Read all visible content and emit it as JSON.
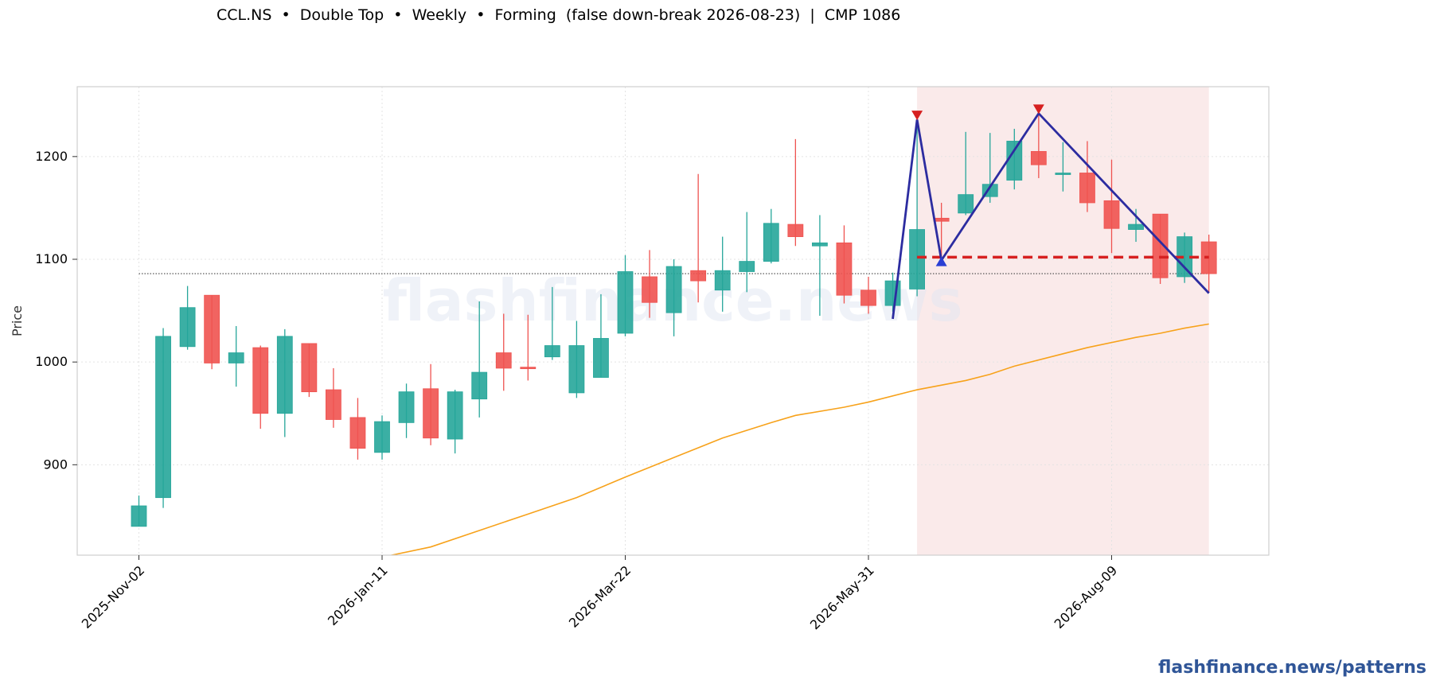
{
  "page": {
    "title": "CCL.NS  •  Double Top  •  Weekly  •  Forming  (false down-break 2026-08-23)  |  CMP 1086",
    "footer_link": "flashfinance.news/patterns",
    "watermark": "flashfinance.news"
  },
  "chart_data": {
    "type": "candlestick",
    "ticker": "CCL.NS",
    "pattern": "Double Top",
    "timeframe": "Weekly",
    "status": "Forming",
    "cmp": 1086,
    "ylabel": "Price",
    "ylim": [
      812,
      1268
    ],
    "yticks": [
      900,
      1000,
      1100,
      1200
    ],
    "xtick_labels": [
      "2025-Nov-02",
      "2026-Jan-11",
      "2026-Mar-22",
      "2026-May-31",
      "2026-Aug-09"
    ],
    "xtick_index": [
      0,
      10,
      20,
      30,
      40
    ],
    "grid": true,
    "colors": {
      "up": "#26a69a",
      "down": "#ef5350",
      "ma": "#f7a21b",
      "pattern": "#2c2ca0",
      "neckline": "#d62020",
      "shade": "#f9e5e5"
    },
    "candles": [
      {
        "date": "2025-Nov-02",
        "o": 840,
        "h": 870,
        "l": 840,
        "c": 860
      },
      {
        "date": "2025-Nov-09",
        "o": 868,
        "h": 1033,
        "l": 858,
        "c": 1025
      },
      {
        "date": "2025-Nov-16",
        "o": 1015,
        "h": 1074,
        "l": 1012,
        "c": 1053
      },
      {
        "date": "2025-Nov-23",
        "o": 1065,
        "h": 1065,
        "l": 993,
        "c": 999
      },
      {
        "date": "2025-Nov-30",
        "o": 999,
        "h": 1035,
        "l": 976,
        "c": 1009
      },
      {
        "date": "2025-Dec-07",
        "o": 1014,
        "h": 1016,
        "l": 935,
        "c": 950
      },
      {
        "date": "2025-Dec-14",
        "o": 950,
        "h": 1032,
        "l": 927,
        "c": 1025
      },
      {
        "date": "2025-Dec-21",
        "o": 1018,
        "h": 1018,
        "l": 966,
        "c": 971
      },
      {
        "date": "2025-Dec-28",
        "o": 973,
        "h": 994,
        "l": 936,
        "c": 944
      },
      {
        "date": "2026-Jan-04",
        "o": 946,
        "h": 965,
        "l": 905,
        "c": 916
      },
      {
        "date": "2026-Jan-11",
        "o": 912,
        "h": 948,
        "l": 905,
        "c": 942
      },
      {
        "date": "2026-Jan-18",
        "o": 941,
        "h": 979,
        "l": 926,
        "c": 971
      },
      {
        "date": "2026-Jan-25",
        "o": 974,
        "h": 998,
        "l": 919,
        "c": 926
      },
      {
        "date": "2026-Feb-01",
        "o": 925,
        "h": 973,
        "l": 911,
        "c": 971
      },
      {
        "date": "2026-Feb-08",
        "o": 964,
        "h": 1059,
        "l": 946,
        "c": 990
      },
      {
        "date": "2026-Feb-15",
        "o": 1009,
        "h": 1047,
        "l": 972,
        "c": 994
      },
      {
        "date": "2026-Feb-22",
        "o": 995,
        "h": 1046,
        "l": 982,
        "c": 994
      },
      {
        "date": "2026-Mar-01",
        "o": 1005,
        "h": 1073,
        "l": 1002,
        "c": 1016
      },
      {
        "date": "2026-Mar-08",
        "o": 970,
        "h": 1040,
        "l": 965,
        "c": 1016
      },
      {
        "date": "2026-Mar-15",
        "o": 985,
        "h": 1066,
        "l": 985,
        "c": 1023
      },
      {
        "date": "2026-Mar-22",
        "o": 1028,
        "h": 1104,
        "l": 1025,
        "c": 1088
      },
      {
        "date": "2026-Mar-29",
        "o": 1083,
        "h": 1109,
        "l": 1043,
        "c": 1058
      },
      {
        "date": "2026-Apr-05",
        "o": 1048,
        "h": 1100,
        "l": 1025,
        "c": 1093
      },
      {
        "date": "2026-Apr-12",
        "o": 1089,
        "h": 1183,
        "l": 1058,
        "c": 1079
      },
      {
        "date": "2026-Apr-19",
        "o": 1070,
        "h": 1122,
        "l": 1049,
        "c": 1089
      },
      {
        "date": "2026-Apr-26",
        "o": 1088,
        "h": 1146,
        "l": 1068,
        "c": 1098
      },
      {
        "date": "2026-May-03",
        "o": 1098,
        "h": 1149,
        "l": 1096,
        "c": 1135
      },
      {
        "date": "2026-May-10",
        "o": 1134,
        "h": 1217,
        "l": 1113,
        "c": 1122
      },
      {
        "date": "2026-May-17",
        "o": 1113,
        "h": 1143,
        "l": 1045,
        "c": 1116
      },
      {
        "date": "2026-May-24",
        "o": 1116,
        "h": 1133,
        "l": 1057,
        "c": 1065
      },
      {
        "date": "2026-May-31",
        "o": 1070,
        "h": 1083,
        "l": 1047,
        "c": 1055
      },
      {
        "date": "2026-Jun-07",
        "o": 1055,
        "h": 1087,
        "l": 1049,
        "c": 1079
      },
      {
        "date": "2026-Jun-14",
        "o": 1071,
        "h": 1236,
        "l": 1064,
        "c": 1129
      },
      {
        "date": "2026-Jun-21",
        "o": 1140,
        "h": 1155,
        "l": 1099,
        "c": 1137
      },
      {
        "date": "2026-Jun-28",
        "o": 1145,
        "h": 1224,
        "l": 1143,
        "c": 1163
      },
      {
        "date": "2026-Jul-05",
        "o": 1161,
        "h": 1223,
        "l": 1155,
        "c": 1173
      },
      {
        "date": "2026-Jul-12",
        "o": 1177,
        "h": 1227,
        "l": 1168,
        "c": 1215
      },
      {
        "date": "2026-Jul-19",
        "o": 1205,
        "h": 1240,
        "l": 1179,
        "c": 1192
      },
      {
        "date": "2026-Jul-26",
        "o": 1184,
        "h": 1214,
        "l": 1166,
        "c": 1184
      },
      {
        "date": "2026-Aug-02",
        "o": 1184,
        "h": 1215,
        "l": 1146,
        "c": 1155
      },
      {
        "date": "2026-Aug-09",
        "o": 1157,
        "h": 1197,
        "l": 1106,
        "c": 1130
      },
      {
        "date": "2026-Aug-16",
        "o": 1129,
        "h": 1149,
        "l": 1117,
        "c": 1134
      },
      {
        "date": "2026-Aug-23",
        "o": 1144,
        "h": 1144,
        "l": 1076,
        "c": 1082
      },
      {
        "date": "2026-Aug-30",
        "o": 1083,
        "h": 1126,
        "l": 1077,
        "c": 1122
      },
      {
        "date": "2026-Sep-06",
        "o": 1117,
        "h": 1124,
        "l": 1068,
        "c": 1086
      }
    ],
    "moving_average": [
      {
        "i": 10,
        "v": 810
      },
      {
        "i": 12,
        "v": 820
      },
      {
        "i": 14,
        "v": 836
      },
      {
        "i": 16,
        "v": 852
      },
      {
        "i": 18,
        "v": 868
      },
      {
        "i": 20,
        "v": 888
      },
      {
        "i": 22,
        "v": 907
      },
      {
        "i": 24,
        "v": 926
      },
      {
        "i": 26,
        "v": 941
      },
      {
        "i": 27,
        "v": 948
      },
      {
        "i": 29,
        "v": 956
      },
      {
        "i": 30,
        "v": 961
      },
      {
        "i": 32,
        "v": 973
      },
      {
        "i": 34,
        "v": 982
      },
      {
        "i": 35,
        "v": 988
      },
      {
        "i": 36,
        "v": 996
      },
      {
        "i": 38,
        "v": 1008
      },
      {
        "i": 39,
        "v": 1014
      },
      {
        "i": 41,
        "v": 1024
      },
      {
        "i": 42,
        "v": 1028
      },
      {
        "i": 43,
        "v": 1033
      },
      {
        "i": 44,
        "v": 1037
      }
    ],
    "pattern_lines": [
      {
        "i": 31,
        "v": 1042
      },
      {
        "i": 32,
        "v": 1236
      },
      {
        "i": 33,
        "v": 1099
      },
      {
        "i": 37,
        "v": 1242
      },
      {
        "i": 44,
        "v": 1067
      }
    ],
    "peak_markers": [
      {
        "i": 32,
        "v": 1240
      },
      {
        "i": 37,
        "v": 1246
      }
    ],
    "trough_markers": [
      {
        "i": 33,
        "v": 1098
      }
    ],
    "neckline": {
      "start_i": 32,
      "end_i": 44,
      "v": 1102
    },
    "cmp_line": {
      "start_i": 0,
      "end_i": 44,
      "v": 1086
    },
    "shaded_region": {
      "start_i": 32,
      "end_i": 44
    }
  }
}
